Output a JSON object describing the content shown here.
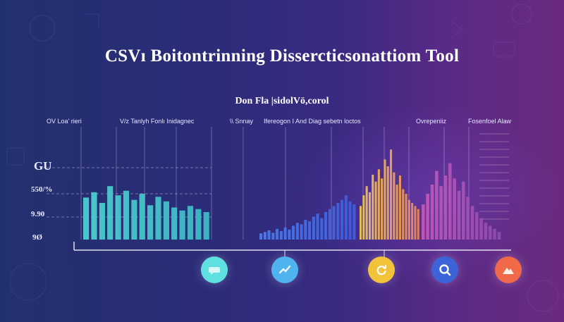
{
  "title": "CSVı Boitontrinning Dissercticsonattiom Tool",
  "subtitle": "Don Fla |sidolVö,corol",
  "column_labels": [
    "OV  Loa' rieri",
    "V/z Tanlyh Fonlı Inidagnec",
    "\\\\ Snnay",
    "Ifereogon I And Diag sebetn loctos",
    "Ovrepeniiz",
    "Fosenfoel Alaw"
  ],
  "y_labels": [
    "GU",
    "550/%",
    "9.90",
    "9Ø"
  ],
  "buttons": [
    {
      "icon": "chat-bubble-icon",
      "color": "#5fe0e0"
    },
    {
      "icon": "trend-line-icon",
      "color": "#4fb3f0"
    },
    {
      "icon": "refresh-cycle-icon",
      "color": "#f2c23a"
    },
    {
      "icon": "search-magnifier-icon",
      "color": "#3d63d8"
    },
    {
      "icon": "mountain-shape-icon",
      "color": "#f06a4a"
    }
  ],
  "colors": {
    "teal": "#4fd6d6",
    "blue": "#4a7ff0",
    "yellow": "#f4cc5a",
    "orange": "#ef8a54",
    "pink": "#c65ab8",
    "purple": "#8e4bb4"
  },
  "chart_data": {
    "type": "bar",
    "title": "CSVı Boitontrinning Dissercticsonattiom Tool",
    "subtitle": "Don Fla |sidolVö,corol",
    "ylabel": "",
    "xlabel": "",
    "y_tick_labels": [
      "GU",
      "550/%",
      "9.90",
      "9Ø"
    ],
    "column_labels": [
      "OV  Loa' rieri",
      "V/z Tanlyh Fonlı Inidagnec",
      "\\\\ Snnay",
      "Ifereogon I And Diag sebetn loctos",
      "Ovrepeniiz",
      "Fosenfoel Alaw"
    ],
    "grid": true,
    "legend": "none",
    "series": [
      {
        "segment": "teal",
        "values": [
          55,
          62,
          48,
          70,
          58,
          64,
          52,
          60,
          45,
          56,
          50,
          42,
          38,
          44,
          40,
          36
        ]
      },
      {
        "segment": "blue",
        "values": [
          8,
          10,
          12,
          9,
          14,
          11,
          16,
          13,
          18,
          22,
          20,
          26,
          24,
          30,
          34,
          28,
          36,
          40,
          44,
          48,
          52,
          58,
          50,
          46
        ]
      },
      {
        "segment": "yellow-orange",
        "values": [
          44,
          58,
          70,
          62,
          85,
          76,
          92,
          80,
          105,
          96,
          118,
          88,
          72,
          84,
          66,
          60,
          52,
          48,
          44,
          40
        ]
      },
      {
        "segment": "pink-purple",
        "values": [
          46,
          60,
          72,
          90,
          70,
          84,
          100,
          80,
          64,
          76,
          56,
          44,
          36,
          28,
          22,
          18,
          14,
          10
        ]
      }
    ]
  }
}
